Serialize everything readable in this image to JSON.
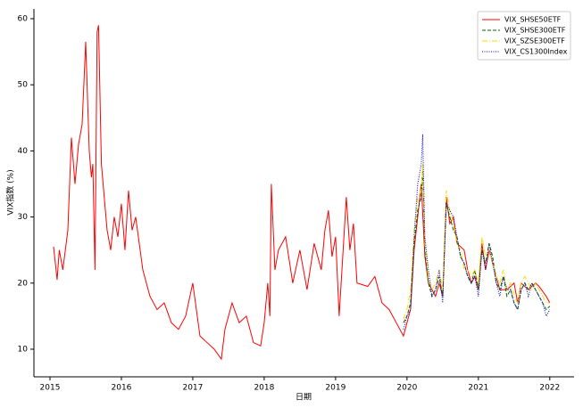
{
  "chart_data": {
    "type": "line",
    "xlabel": "日期",
    "ylabel": "VIX指数 (%)",
    "xlim": [
      2014.775,
      2022.34
    ],
    "xticks": [
      2015,
      2016,
      2017,
      2018,
      2019,
      2020,
      2021,
      2022
    ],
    "ylim": [
      5.82,
      61.48
    ],
    "yticks": [
      10,
      20,
      30,
      40,
      50,
      60
    ],
    "grid": false,
    "legend": "upper right",
    "series": [
      {
        "name": "VIX_SHSE50ETF",
        "color": "#ff0000",
        "linestyle": "solid",
        "x": [
          2015.05,
          2015.1,
          2015.13,
          2015.18,
          2015.25,
          2015.3,
          2015.35,
          2015.4,
          2015.45,
          2015.5,
          2015.55,
          2015.58,
          2015.6,
          2015.63,
          2015.66,
          2015.68,
          2015.72,
          2015.8,
          2015.85,
          2015.9,
          2015.95,
          2016,
          2016.05,
          2016.1,
          2016.15,
          2016.2,
          2016.3,
          2016.4,
          2016.5,
          2016.6,
          2016.7,
          2016.8,
          2016.9,
          2017,
          2017.1,
          2017.2,
          2017.3,
          2017.4,
          2017.45,
          2017.55,
          2017.65,
          2017.75,
          2017.85,
          2017.95,
          2018,
          2018.05,
          2018.08,
          2018.1,
          2018.15,
          2018.2,
          2018.3,
          2018.4,
          2018.5,
          2018.6,
          2018.7,
          2018.8,
          2018.85,
          2018.9,
          2018.95,
          2019,
          2019.05,
          2019.1,
          2019.15,
          2019.2,
          2019.25,
          2019.3,
          2019.45,
          2019.55,
          2019.65,
          2019.75,
          2019.85,
          2019.95,
          2020,
          2020.05,
          2020.1,
          2020.15,
          2020.2,
          2020.25,
          2020.3,
          2020.4,
          2020.45,
          2020.5,
          2020.55,
          2020.6,
          2020.65,
          2020.7,
          2020.8,
          2020.85,
          2020.9,
          2020.95,
          2021,
          2021.05,
          2021.1,
          2021.15,
          2021.2,
          2021.3,
          2021.4,
          2021.5,
          2021.55,
          2021.6,
          2021.7,
          2021.8,
          2021.85,
          2021.95,
          2022
        ],
        "values": [
          25.5,
          20.5,
          25,
          22,
          28,
          42,
          35,
          41,
          44,
          56.5,
          40,
          36,
          38,
          22,
          58,
          59,
          38,
          28,
          25,
          30,
          27,
          32,
          25,
          34,
          28,
          30,
          22,
          18,
          16,
          17,
          14,
          13,
          15,
          20,
          12,
          11,
          10,
          8.5,
          13,
          17,
          14,
          15,
          11,
          10.5,
          14,
          20,
          15,
          35,
          22,
          25,
          27,
          20,
          25,
          19,
          26,
          22,
          28,
          31,
          24,
          27,
          15,
          24,
          33,
          25,
          29,
          20,
          19.5,
          21,
          17,
          16,
          14,
          12,
          14,
          16,
          25,
          30,
          35,
          24,
          20,
          18,
          20,
          18,
          33,
          29,
          30,
          26,
          25,
          22,
          20,
          21,
          19,
          26,
          22,
          25,
          23,
          19,
          19,
          20,
          17,
          20,
          19,
          20,
          19.5,
          18,
          17
        ]
      },
      {
        "name": "VIX_SHSE300ETF",
        "color": "#006400",
        "linestyle": "dashed",
        "x": [
          2019.95,
          2020,
          2020.05,
          2020.1,
          2020.15,
          2020.2,
          2020.22,
          2020.25,
          2020.3,
          2020.35,
          2020.4,
          2020.45,
          2020.5,
          2020.55,
          2020.6,
          2020.65,
          2020.7,
          2020.75,
          2020.8,
          2020.85,
          2020.9,
          2020.95,
          2021,
          2021.05,
          2021.1,
          2021.15,
          2021.2,
          2021.25,
          2021.3,
          2021.35,
          2021.4,
          2021.45,
          2021.5,
          2021.55,
          2021.6,
          2021.65,
          2021.7,
          2021.75,
          2021.8,
          2021.85,
          2021.9,
          2021.95,
          2022
        ],
        "values": [
          14,
          15,
          17,
          26,
          31,
          33,
          37,
          25,
          20,
          18,
          19,
          21,
          18,
          32,
          30,
          28,
          27,
          24,
          23,
          21,
          20,
          22,
          19,
          25,
          23,
          26,
          24,
          20,
          19,
          21,
          18,
          19,
          17,
          16,
          19,
          20,
          19,
          20,
          19,
          18,
          17,
          16,
          16.5
        ]
      },
      {
        "name": "VIX_SZSE300ETF",
        "color": "#ffd700",
        "linestyle": "dashdot",
        "x": [
          2019.95,
          2020,
          2020.05,
          2020.1,
          2020.15,
          2020.2,
          2020.22,
          2020.25,
          2020.3,
          2020.35,
          2020.4,
          2020.45,
          2020.5,
          2020.55,
          2020.6,
          2020.65,
          2020.7,
          2020.75,
          2020.8,
          2020.85,
          2020.9,
          2020.95,
          2021,
          2021.05,
          2021.1,
          2021.15,
          2021.2,
          2021.25,
          2021.3,
          2021.35,
          2021.4,
          2021.45,
          2021.5,
          2021.55,
          2021.6,
          2021.65,
          2021.7,
          2021.75,
          2021.8,
          2021.85,
          2021.9,
          2021.95,
          2022
        ],
        "values": [
          14.5,
          16,
          19,
          28,
          33,
          34,
          38,
          26,
          21,
          19,
          20,
          22,
          19,
          34,
          31,
          29,
          26,
          25,
          22,
          22,
          21,
          22,
          20,
          27,
          24,
          25,
          23,
          21,
          20,
          22,
          19,
          20,
          18,
          17,
          20,
          21,
          20,
          19,
          20,
          19,
          18,
          17,
          17
        ]
      },
      {
        "name": "VIX_CS1300Index",
        "color": "#0000cd",
        "linestyle": "dotted",
        "x": [
          2019.95,
          2020,
          2020.05,
          2020.1,
          2020.15,
          2020.2,
          2020.22,
          2020.25,
          2020.3,
          2020.35,
          2020.4,
          2020.45,
          2020.5,
          2020.55,
          2020.6,
          2020.65,
          2020.7,
          2020.75,
          2020.8,
          2020.85,
          2020.9,
          2020.95,
          2021,
          2021.05,
          2021.1,
          2021.15,
          2021.2,
          2021.25,
          2021.3,
          2021.35,
          2021.4,
          2021.45,
          2021.5,
          2021.55,
          2021.6,
          2021.65,
          2021.7,
          2021.75,
          2021.8,
          2021.85,
          2021.9,
          2021.95,
          2022
        ],
        "values": [
          13,
          15,
          16,
          27,
          35,
          38,
          42.5,
          27,
          22,
          18,
          19,
          22,
          17,
          32,
          31,
          30,
          27,
          24,
          23,
          21,
          20,
          21,
          18,
          25,
          22,
          26,
          23,
          20,
          18,
          21,
          19,
          19,
          17,
          16,
          19,
          20,
          18,
          20,
          19,
          18,
          17,
          15,
          16
        ]
      }
    ]
  }
}
